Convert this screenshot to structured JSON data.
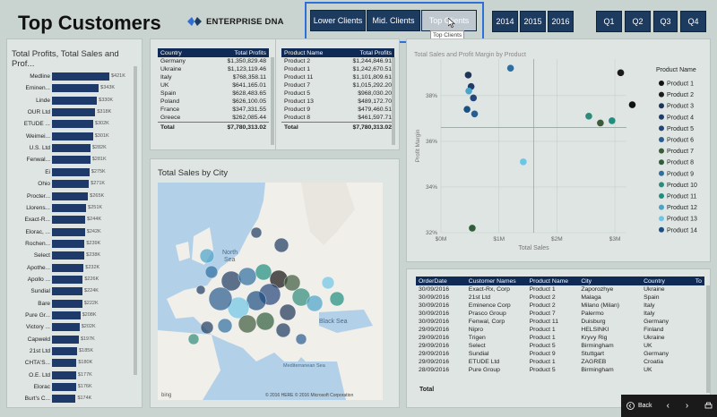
{
  "header": {
    "title": "Top Customers",
    "logo_text": "ENTERPRISE DNA"
  },
  "segment_buttons": [
    {
      "label": "Lower Clients",
      "selected": false
    },
    {
      "label": "Mid. Clients",
      "selected": false
    },
    {
      "label": "Top Clients",
      "selected": true
    }
  ],
  "tooltip": "Top Clients",
  "year_buttons": [
    "2014",
    "2015",
    "2016"
  ],
  "quarter_buttons": [
    "Q1",
    "Q2",
    "Q3",
    "Q4"
  ],
  "colors": {
    "navy": "#1d3a5f",
    "accent": "#2f6fd8",
    "bar": "#1d3a6a"
  },
  "profits_panel": {
    "title": "Total Profits, Total Sales and Prof...",
    "rows": [
      {
        "name": "Medline",
        "value": "$421K",
        "v": 421
      },
      {
        "name": "Eminen...",
        "value": "$343K",
        "v": 343
      },
      {
        "name": "Linde",
        "value": "$330K",
        "v": 330
      },
      {
        "name": "OUR Ltd",
        "value": "$318K",
        "v": 318
      },
      {
        "name": "ETUDE ...",
        "value": "$302K",
        "v": 302
      },
      {
        "name": "Weimei...",
        "value": "$301K",
        "v": 301
      },
      {
        "name": "U.S. Ltd",
        "value": "$282K",
        "v": 282
      },
      {
        "name": "Fenwal...",
        "value": "$281K",
        "v": 281
      },
      {
        "name": "Ei",
        "value": "$275K",
        "v": 275
      },
      {
        "name": "Ohio",
        "value": "$271K",
        "v": 271
      },
      {
        "name": "Procter...",
        "value": "$265K",
        "v": 265
      },
      {
        "name": "Llorens...",
        "value": "$251K",
        "v": 251
      },
      {
        "name": "Exact-R...",
        "value": "$244K",
        "v": 244
      },
      {
        "name": "Elorac, ...",
        "value": "$242K",
        "v": 242
      },
      {
        "name": "Rochen...",
        "value": "$239K",
        "v": 239
      },
      {
        "name": "Select",
        "value": "$238K",
        "v": 238
      },
      {
        "name": "Apothe...",
        "value": "$232K",
        "v": 232
      },
      {
        "name": "Apollo ...",
        "value": "$226K",
        "v": 226
      },
      {
        "name": "Sundial",
        "value": "$224K",
        "v": 224
      },
      {
        "name": "Bare",
        "value": "$222K",
        "v": 222
      },
      {
        "name": "Pure Gr...",
        "value": "$208K",
        "v": 208
      },
      {
        "name": "Victory ...",
        "value": "$202K",
        "v": 202
      },
      {
        "name": "Capweld",
        "value": "$197K",
        "v": 197
      },
      {
        "name": "21st Ltd",
        "value": "$185K",
        "v": 185
      },
      {
        "name": "CHTA'S...",
        "value": "$180K",
        "v": 180
      },
      {
        "name": "O.E. Ltd",
        "value": "$177K",
        "v": 177
      },
      {
        "name": "Elorac",
        "value": "$176K",
        "v": 176
      },
      {
        "name": "Burt's C...",
        "value": "$174K",
        "v": 174
      }
    ]
  },
  "country_table": {
    "headers": [
      "Country",
      "Total Profits"
    ],
    "rows": [
      [
        "Germany",
        "$1,350,829.48"
      ],
      [
        "Ukraine",
        "$1,123,119.46"
      ],
      [
        "Italy",
        "$768,358.11"
      ],
      [
        "UK",
        "$641,165.01"
      ],
      [
        "Spain",
        "$628,483.65"
      ],
      [
        "Poland",
        "$626,100.05"
      ],
      [
        "France",
        "$347,331.55"
      ],
      [
        "Greece",
        "$262,085.44"
      ]
    ],
    "total_label": "Total",
    "total_value": "$7,780,313.02"
  },
  "product_table": {
    "headers": [
      "Product Name",
      "Total Profits"
    ],
    "rows": [
      [
        "Product 2",
        "$1,244,846.91"
      ],
      [
        "Product 1",
        "$1,242,670.51"
      ],
      [
        "Product 11",
        "$1,101,809.61"
      ],
      [
        "Product 7",
        "$1,015,292.20"
      ],
      [
        "Product 5",
        "$968,030.20"
      ],
      [
        "Product 13",
        "$489,172.70"
      ],
      [
        "Product 9",
        "$479,460.51"
      ],
      [
        "Product 8",
        "$461,597.71"
      ]
    ],
    "total_label": "Total",
    "total_value": "$7,780,313.02"
  },
  "map_panel": {
    "title": "Total Sales by City",
    "labels": {
      "north_sea": "North\nSea",
      "black_sea": "Black Sea",
      "med_sea": "Mediterranean Sea"
    },
    "copyright": "© 2016 HERE   © 2016 Microsoft Corporation",
    "bing": "bing"
  },
  "chart_data": {
    "type": "scatter",
    "title": "Total Sales and Profit Margin by Product",
    "xlabel": "Total Sales",
    "ylabel": "Profit Margin",
    "xticks": [
      "$0M",
      "$1M",
      "$2M",
      "$3M"
    ],
    "yticks": [
      "32%",
      "34%",
      "36%",
      "38%"
    ],
    "xlim": [
      0,
      3.2
    ],
    "ylim": [
      32,
      39.6
    ],
    "legend_title": "Product Name",
    "legend_position": "right",
    "series": [
      {
        "name": "Product 1",
        "x": 3.3,
        "y": 37.6,
        "color": "#111111"
      },
      {
        "name": "Product 2",
        "x": 3.1,
        "y": 39.0,
        "color": "#1a1a1a"
      },
      {
        "name": "Product 3",
        "x": 0.47,
        "y": 38.9,
        "color": "#1d3557"
      },
      {
        "name": "Product 4",
        "x": 0.52,
        "y": 38.4,
        "color": "#1f3d6b"
      },
      {
        "name": "Product 5",
        "x": 0.56,
        "y": 37.9,
        "color": "#23457a"
      },
      {
        "name": "Product 6",
        "x": 0.58,
        "y": 37.2,
        "color": "#2a5d8f"
      },
      {
        "name": "Product 7",
        "x": 2.75,
        "y": 36.8,
        "color": "#3d5a3a"
      },
      {
        "name": "Product 8",
        "x": 0.54,
        "y": 32.2,
        "color": "#2e5e3a"
      },
      {
        "name": "Product 9",
        "x": 1.2,
        "y": 39.2,
        "color": "#2d6fa0"
      },
      {
        "name": "Product 10",
        "x": 2.55,
        "y": 37.1,
        "color": "#2e8b7a"
      },
      {
        "name": "Product 11",
        "x": 2.95,
        "y": 36.9,
        "color": "#1e8f7e"
      },
      {
        "name": "Product 12",
        "x": 0.48,
        "y": 38.2,
        "color": "#4aa3c8"
      },
      {
        "name": "Product 13",
        "x": 1.42,
        "y": 35.1,
        "color": "#6ec6e6"
      },
      {
        "name": "Product 14",
        "x": 0.45,
        "y": 37.4,
        "color": "#1c4f82"
      }
    ]
  },
  "orders_table": {
    "headers": [
      "OrderDate",
      "Customer Names",
      "Product Name",
      "City",
      "Country",
      "To"
    ],
    "rows": [
      [
        "30/09/2016",
        "Exact-Rx, Corp",
        "Product 1",
        "Zaporozhye",
        "Ukraine"
      ],
      [
        "30/09/2016",
        "21st Ltd",
        "Product 2",
        "Malaga",
        "Spain"
      ],
      [
        "30/09/2016",
        "Eminence Corp",
        "Product 2",
        "Milano (Milan)",
        "Italy"
      ],
      [
        "30/09/2016",
        "Prasco Group",
        "Product 7",
        "Palermo",
        "Italy"
      ],
      [
        "30/09/2016",
        "Fenwal, Corp",
        "Product 11",
        "Duisburg",
        "Germany"
      ],
      [
        "29/09/2016",
        "Nipro",
        "Product 1",
        "HELSINKI",
        "Finland"
      ],
      [
        "29/09/2016",
        "Trigen",
        "Product 1",
        "Kryvy Rig",
        "Ukraine"
      ],
      [
        "29/09/2016",
        "Select",
        "Product 5",
        "Birmingham",
        "UK"
      ],
      [
        "29/09/2016",
        "Sundial",
        "Product 9",
        "Stuttgart",
        "Germany"
      ],
      [
        "29/09/2016",
        "ETUDE Ltd",
        "Product 1",
        "ZAGREB",
        "Croatia"
      ],
      [
        "28/09/2016",
        "Pure Group",
        "Product 5",
        "Birmingham",
        "UK"
      ]
    ],
    "total_label": "Total"
  },
  "nav": {
    "back": "Back"
  }
}
